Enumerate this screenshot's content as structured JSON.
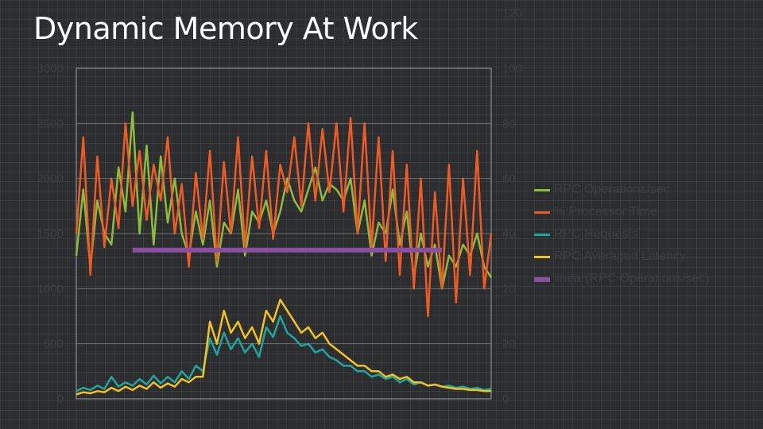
{
  "title": "Dynamic Memory At Work",
  "colors": {
    "rpc_operations": "#8dbb3c",
    "processor_time": "#f05a24",
    "rpc_requests": "#21a5a0",
    "rpc_latency": "#f2c21f",
    "linear": "#8a4fa0"
  },
  "chart_data": {
    "type": "line",
    "title": "Dynamic Memory At Work",
    "xlabel": "",
    "ylabel": "",
    "ylim": [
      0,
      3000
    ],
    "y2lim": [
      0,
      120
    ],
    "yticks": [
      "0",
      "500",
      "1000",
      "1500",
      "2000",
      "2500",
      "3000"
    ],
    "y2ticks": [
      "0",
      "20",
      "20",
      "40",
      "60",
      "80",
      "100",
      "120"
    ],
    "grid": true,
    "legend_position": "right",
    "x": [
      1,
      2,
      3,
      4,
      5,
      6,
      7,
      8,
      9,
      10,
      11,
      12,
      13,
      14,
      15,
      16,
      17,
      18,
      19,
      20,
      21,
      22,
      23,
      24,
      25,
      26,
      27,
      28,
      29,
      30,
      31,
      32,
      33,
      34,
      35,
      36,
      37,
      38,
      39,
      40,
      41,
      42,
      43,
      44,
      45,
      46,
      47,
      48,
      49,
      50,
      51,
      52,
      53,
      54,
      55,
      56,
      57,
      58,
      59,
      60
    ],
    "series": [
      {
        "name": "RPC Operations/sec",
        "axis": "left",
        "values": [
          1300,
          1900,
          1200,
          1800,
          1500,
          1400,
          2100,
          1700,
          2600,
          1500,
          2300,
          1400,
          2200,
          1600,
          2000,
          1500,
          1300,
          1700,
          1400,
          1800,
          1200,
          1600,
          1500,
          1900,
          1300,
          1700,
          1600,
          1800,
          1500,
          1700,
          2000,
          1800,
          1700,
          1900,
          2100,
          1800,
          1950,
          1900,
          1800,
          2000,
          1500,
          1800,
          1300,
          1600,
          1500,
          1900,
          1400,
          1700,
          1100,
          1500,
          1200,
          1400,
          1000,
          1300,
          1200,
          1400,
          1300,
          1500,
          1200,
          1100
        ]
      },
      {
        "name": "% Processor Time",
        "axis": "right",
        "values": [
          60,
          95,
          45,
          88,
          55,
          80,
          62,
          100,
          70,
          90,
          65,
          85,
          72,
          95,
          60,
          78,
          48,
          82,
          58,
          90,
          50,
          86,
          60,
          95,
          55,
          88,
          62,
          90,
          58,
          85,
          75,
          95,
          70,
          100,
          72,
          98,
          75,
          100,
          68,
          102,
          60,
          100,
          55,
          95,
          50,
          90,
          45,
          85,
          40,
          80,
          30,
          75,
          40,
          85,
          35,
          80,
          45,
          90,
          40,
          60
        ]
      },
      {
        "name": "RPC Requests",
        "axis": "left",
        "values": [
          70,
          100,
          80,
          120,
          90,
          200,
          110,
          150,
          120,
          180,
          130,
          210,
          140,
          200,
          150,
          250,
          180,
          300,
          250,
          550,
          400,
          600,
          450,
          550,
          420,
          500,
          380,
          650,
          560,
          750,
          600,
          550,
          480,
          500,
          420,
          450,
          380,
          350,
          300,
          300,
          250,
          250,
          200,
          220,
          180,
          200,
          150,
          180,
          130,
          150,
          120,
          130,
          110,
          120,
          100,
          110,
          90,
          100,
          80,
          90
        ]
      },
      {
        "name": "RPC Averaged Latency",
        "axis": "left",
        "values": [
          40,
          60,
          50,
          70,
          60,
          100,
          70,
          110,
          80,
          120,
          90,
          150,
          100,
          140,
          110,
          180,
          150,
          200,
          200,
          700,
          500,
          800,
          600,
          700,
          550,
          650,
          500,
          800,
          700,
          900,
          800,
          700,
          600,
          650,
          550,
          600,
          500,
          450,
          400,
          350,
          300,
          300,
          250,
          250,
          200,
          220,
          180,
          200,
          150,
          150,
          120,
          130,
          110,
          100,
          90,
          90,
          80,
          80,
          70,
          70
        ]
      },
      {
        "name": "linear(RPC Operations/sec)",
        "axis": "left",
        "values": [
          1350,
          1350,
          1350,
          1350,
          1350,
          1350,
          1350,
          1350,
          1350,
          1350,
          1350,
          1350,
          1350,
          1350,
          1350,
          1350,
          1350,
          1350,
          1350,
          1350,
          1350,
          1350,
          1350,
          1350,
          1350,
          1350,
          1350,
          1350,
          1350,
          1350,
          1350,
          1350,
          1350,
          1350,
          1350,
          1350,
          1350,
          1350,
          1350,
          1350,
          1350,
          1350,
          1350,
          1350,
          1350,
          1350,
          1350,
          1350,
          1350,
          1350,
          1350,
          1350,
          1350,
          1350,
          1350,
          1350,
          1350,
          1350,
          1350,
          1350
        ]
      }
    ]
  }
}
